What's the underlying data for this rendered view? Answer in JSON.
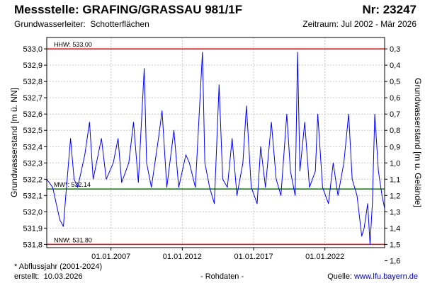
{
  "header": {
    "title": "Messstelle: GRAFING/GRASSAU 981/1F",
    "number": "Nr: 23247",
    "aquifer_label": "Grundwasserleiter:",
    "aquifer_value": "Schotterflächen",
    "period": "Zeitraum: Jul 2002 - Mär 2026"
  },
  "footer": {
    "footnote": "* Abflussjahr (2001-2024)",
    "created_label": "erstellt:",
    "created_date": "10.03.2026",
    "raw": "- Rohdaten -",
    "source_label": "Quelle:",
    "source_link": "www.lfu.bayern.de"
  },
  "colors": {
    "series": "#0000ff",
    "extreme_lines": "#ff0000",
    "mean_line": "#008000",
    "grid": "#c8c8c8",
    "frame": "#000000"
  },
  "chart_data": {
    "type": "line",
    "title": "Messstelle: GRAFING/GRASSAU 981/1F",
    "ylabel": "Grundwasserstand [m ü. NN]",
    "ylabel_right": "Grundwasserstand [m u. Gelände]",
    "ylim": [
      531.78,
      533.07
    ],
    "y_ticks": [
      "533,0",
      "532,9",
      "532,8",
      "532,7",
      "532,6",
      "532,5",
      "532,4",
      "532,3",
      "532,2",
      "532,1",
      "532,0",
      "531,9",
      "531,8"
    ],
    "y_tick_values": [
      533.0,
      532.9,
      532.8,
      532.7,
      532.6,
      532.5,
      532.4,
      532.3,
      532.2,
      532.1,
      532.0,
      531.9,
      531.8
    ],
    "y2_ticks": [
      "0,3",
      "0,4",
      "0,5",
      "0,6",
      "0,7",
      "0,8",
      "0,9",
      "1,0",
      "1,1",
      "1,2",
      "1,3",
      "1,4",
      "1,5",
      "1,6"
    ],
    "y2_tick_values": [
      0.3,
      0.4,
      0.5,
      0.6,
      0.7,
      0.8,
      0.9,
      1.0,
      1.1,
      1.2,
      1.3,
      1.4,
      1.5,
      1.6
    ],
    "xlim": [
      "2002-07-01",
      "2026-03-10"
    ],
    "x_ticks": [
      "01.01.2007",
      "01.01.2012",
      "01.01.2017",
      "01.01.2022"
    ],
    "x_tick_values": [
      "2007-01-01",
      "2012-01-01",
      "2017-01-01",
      "2022-01-01"
    ],
    "grid": true,
    "reference_lines": [
      {
        "label": "HHW: 533.00",
        "value": 533.0,
        "color": "#ff0000"
      },
      {
        "label": "MW*: 532.14",
        "value": 532.14,
        "color": "#008000"
      },
      {
        "label": "NNW: 531.80",
        "value": 531.8,
        "color": "#ff0000"
      }
    ],
    "series": [
      {
        "color": "#0000ff",
        "points": [
          [
            "2002-07-01",
            532.2
          ],
          [
            "2002-12-01",
            532.15
          ],
          [
            "2003-03-01",
            532.05
          ],
          [
            "2003-06-01",
            531.95
          ],
          [
            "2003-09-01",
            531.91
          ],
          [
            "2003-11-01",
            532.1
          ],
          [
            "2004-03-01",
            532.45
          ],
          [
            "2004-06-01",
            532.2
          ],
          [
            "2004-09-01",
            532.15
          ],
          [
            "2005-03-01",
            532.35
          ],
          [
            "2005-07-01",
            532.55
          ],
          [
            "2005-10-01",
            532.2
          ],
          [
            "2006-05-01",
            532.45
          ],
          [
            "2006-09-01",
            532.2
          ],
          [
            "2007-03-01",
            532.3
          ],
          [
            "2007-07-01",
            532.45
          ],
          [
            "2007-10-01",
            532.18
          ],
          [
            "2008-04-01",
            532.3
          ],
          [
            "2008-08-01",
            532.55
          ],
          [
            "2008-12-01",
            532.18
          ],
          [
            "2009-05-01",
            532.88
          ],
          [
            "2009-07-01",
            532.3
          ],
          [
            "2009-11-01",
            532.15
          ],
          [
            "2010-05-01",
            532.45
          ],
          [
            "2010-08-01",
            532.62
          ],
          [
            "2010-12-01",
            532.15
          ],
          [
            "2011-06-01",
            532.5
          ],
          [
            "2011-10-01",
            532.15
          ],
          [
            "2012-04-01",
            532.35
          ],
          [
            "2012-07-01",
            532.3
          ],
          [
            "2012-12-01",
            532.15
          ],
          [
            "2013-06-01",
            532.98
          ],
          [
            "2013-08-01",
            532.3
          ],
          [
            "2013-12-01",
            532.15
          ],
          [
            "2014-04-01",
            532.05
          ],
          [
            "2014-08-01",
            532.78
          ],
          [
            "2014-11-01",
            532.2
          ],
          [
            "2015-03-01",
            532.15
          ],
          [
            "2015-07-01",
            532.45
          ],
          [
            "2015-11-01",
            532.1
          ],
          [
            "2016-04-01",
            532.3
          ],
          [
            "2016-07-01",
            532.65
          ],
          [
            "2016-11-01",
            532.15
          ],
          [
            "2017-04-01",
            532.05
          ],
          [
            "2017-07-01",
            532.4
          ],
          [
            "2017-11-01",
            532.15
          ],
          [
            "2018-04-01",
            532.55
          ],
          [
            "2018-08-01",
            532.2
          ],
          [
            "2018-12-01",
            532.1
          ],
          [
            "2019-05-01",
            532.6
          ],
          [
            "2019-08-01",
            532.25
          ],
          [
            "2019-12-01",
            532.1
          ],
          [
            "2020-02-01",
            532.98
          ],
          [
            "2020-04-01",
            532.25
          ],
          [
            "2020-08-01",
            532.55
          ],
          [
            "2020-12-01",
            532.15
          ],
          [
            "2021-05-01",
            532.25
          ],
          [
            "2021-07-01",
            532.6
          ],
          [
            "2021-11-01",
            532.15
          ],
          [
            "2022-04-01",
            532.05
          ],
          [
            "2022-08-01",
            532.3
          ],
          [
            "2022-12-01",
            532.1
          ],
          [
            "2023-05-01",
            532.3
          ],
          [
            "2023-09-01",
            532.6
          ],
          [
            "2023-12-01",
            532.2
          ],
          [
            "2024-04-01",
            532.1
          ],
          [
            "2024-08-01",
            531.85
          ],
          [
            "2024-10-01",
            531.9
          ],
          [
            "2025-01-01",
            532.05
          ],
          [
            "2025-03-01",
            531.8
          ],
          [
            "2025-05-01",
            532.05
          ],
          [
            "2025-07-01",
            532.6
          ],
          [
            "2025-10-01",
            532.25
          ],
          [
            "2026-01-01",
            532.1
          ],
          [
            "2026-03-10",
            532.02
          ]
        ]
      }
    ]
  }
}
